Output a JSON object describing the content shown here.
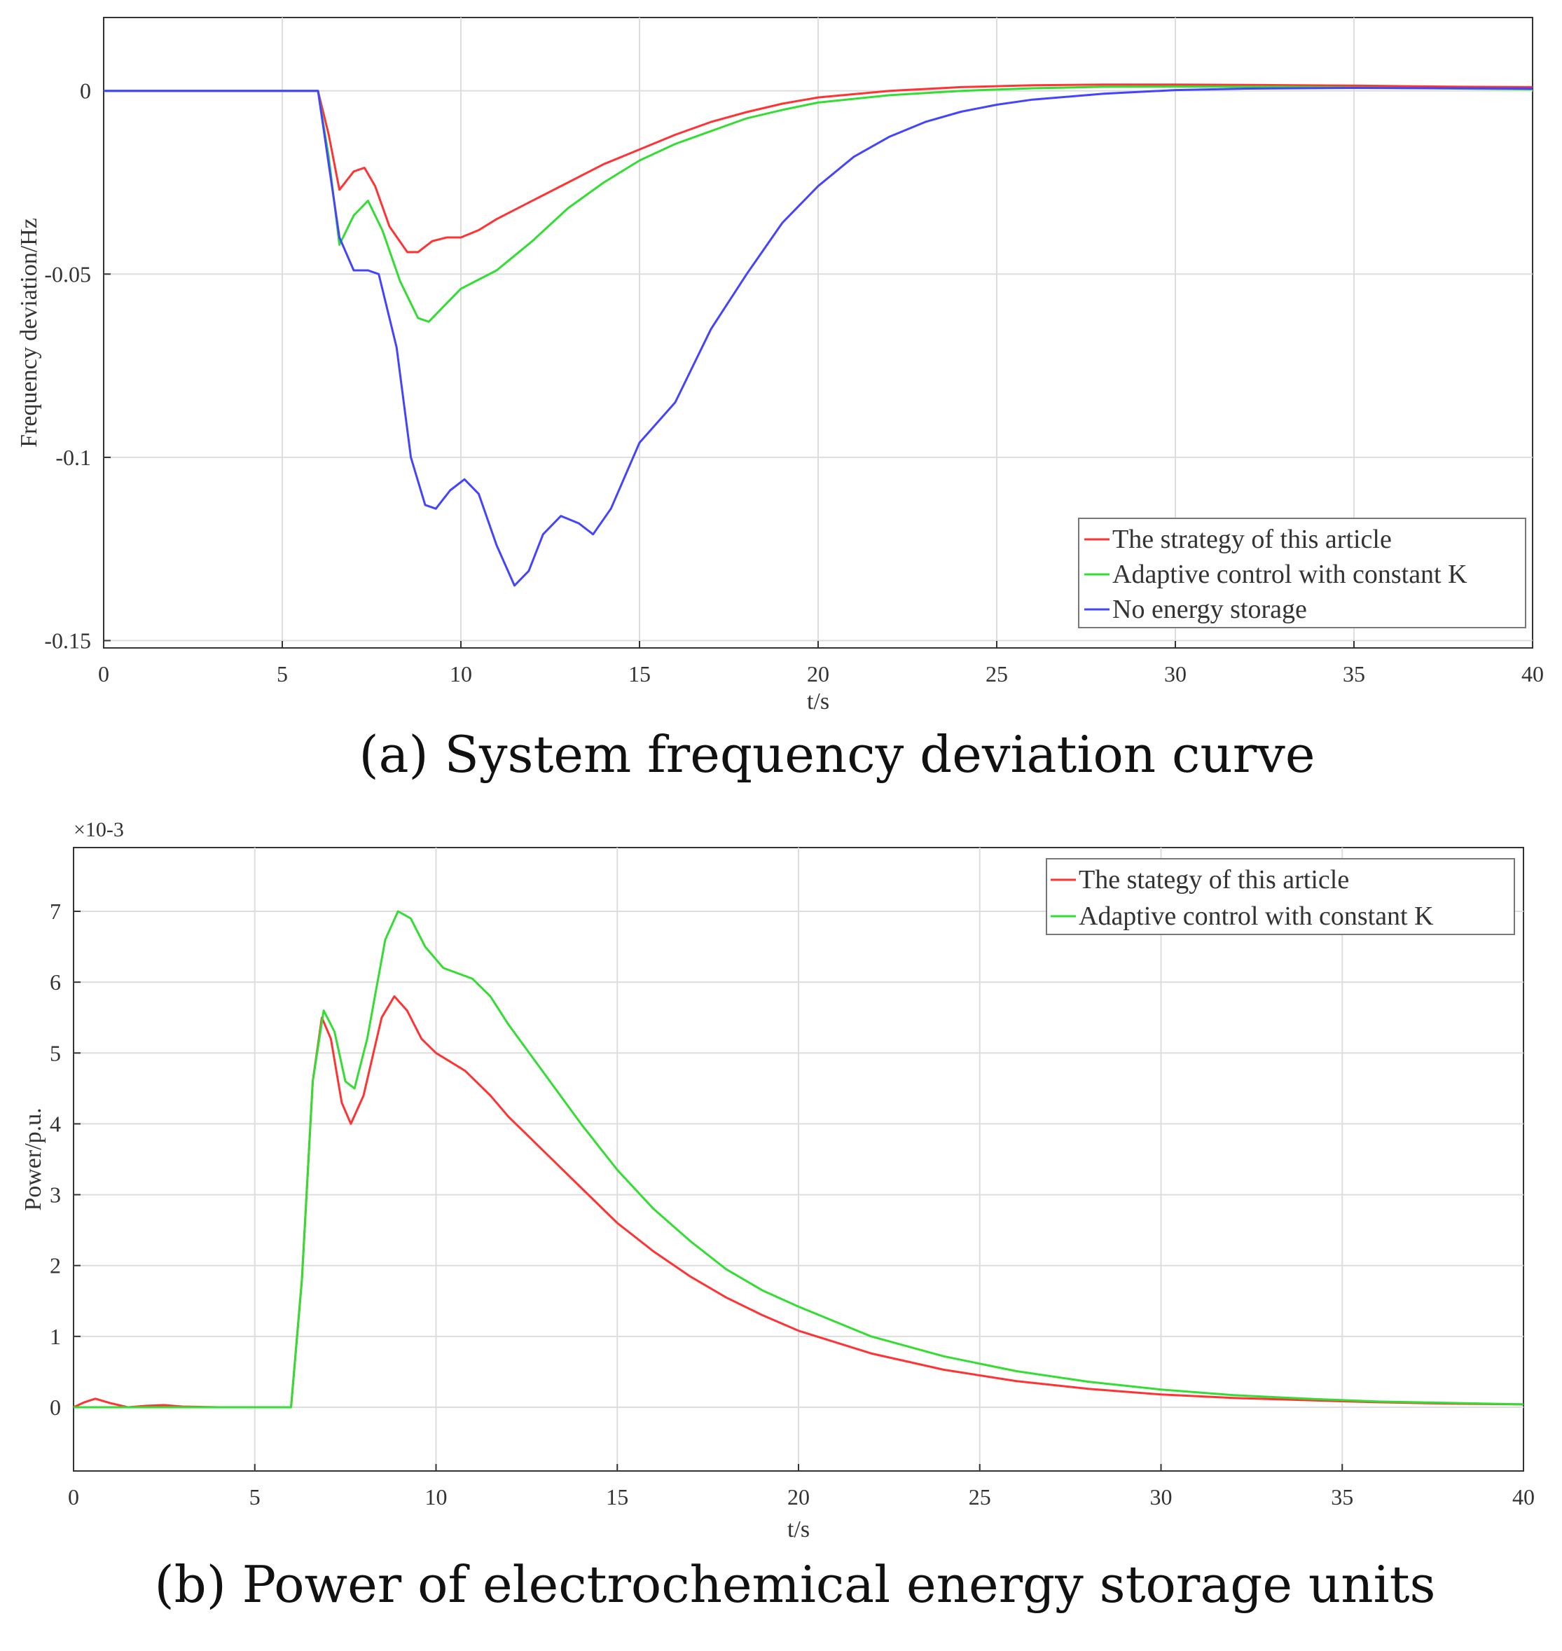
{
  "chart_data": [
    {
      "type": "line",
      "caption": "(a) System frequency deviation curve",
      "xlabel": "t/s",
      "ylabel": "Frequency deviation/Hz",
      "xlim": [
        0,
        40
      ],
      "ylim": [
        -0.152,
        0.02
      ],
      "xticks": [
        0,
        5,
        10,
        15,
        20,
        25,
        30,
        35,
        40
      ],
      "xtick_labels": [
        "0",
        "5",
        "10",
        "15",
        "20",
        "25",
        "30",
        "35",
        "40"
      ],
      "yticks": [
        0,
        -0.05,
        -0.1,
        -0.15
      ],
      "ytick_labels": [
        "0",
        "-0.05",
        "-0.1",
        "-0.15"
      ],
      "grid": true,
      "legend_position": "bottom-right",
      "series": [
        {
          "name": "The strategy of this article",
          "color": "#ff3333",
          "points": [
            [
              0,
              0
            ],
            [
              6,
              0
            ],
            [
              6.3,
              -0.012
            ],
            [
              6.6,
              -0.027
            ],
            [
              7,
              -0.022
            ],
            [
              7.3,
              -0.021
            ],
            [
              7.6,
              -0.026
            ],
            [
              8,
              -0.037
            ],
            [
              8.5,
              -0.044
            ],
            [
              8.8,
              -0.044
            ],
            [
              9.2,
              -0.041
            ],
            [
              9.6,
              -0.04
            ],
            [
              10,
              -0.04
            ],
            [
              10.5,
              -0.038
            ],
            [
              11,
              -0.035
            ],
            [
              12,
              -0.03
            ],
            [
              13,
              -0.025
            ],
            [
              14,
              -0.02
            ],
            [
              15,
              -0.016
            ],
            [
              16,
              -0.012
            ],
            [
              17,
              -0.0085
            ],
            [
              18,
              -0.0058
            ],
            [
              19,
              -0.0035
            ],
            [
              20,
              -0.0018
            ],
            [
              22,
              0
            ],
            [
              24,
              0.001
            ],
            [
              26,
              0.0015
            ],
            [
              28,
              0.0017
            ],
            [
              30,
              0.0017
            ],
            [
              32,
              0.0016
            ],
            [
              35,
              0.0014
            ],
            [
              38,
              0.0011
            ],
            [
              40,
              0.001
            ]
          ]
        },
        {
          "name": "Adaptive control with constant K",
          "color": "#33dd33",
          "points": [
            [
              0,
              0
            ],
            [
              6,
              0
            ],
            [
              6.3,
              -0.018
            ],
            [
              6.6,
              -0.042
            ],
            [
              7,
              -0.034
            ],
            [
              7.4,
              -0.03
            ],
            [
              7.8,
              -0.038
            ],
            [
              8.3,
              -0.052
            ],
            [
              8.8,
              -0.062
            ],
            [
              9.1,
              -0.063
            ],
            [
              9.6,
              -0.058
            ],
            [
              10,
              -0.054
            ],
            [
              11,
              -0.049
            ],
            [
              12,
              -0.041
            ],
            [
              13,
              -0.032
            ],
            [
              14,
              -0.025
            ],
            [
              15,
              -0.019
            ],
            [
              16,
              -0.0145
            ],
            [
              17,
              -0.011
            ],
            [
              18,
              -0.0075
            ],
            [
              19,
              -0.0052
            ],
            [
              20,
              -0.0032
            ],
            [
              22,
              -0.0012
            ],
            [
              24,
              0
            ],
            [
              26,
              0.0007
            ],
            [
              28,
              0.0011
            ],
            [
              30,
              0.0012
            ],
            [
              33,
              0.0011
            ],
            [
              36,
              0.0008
            ],
            [
              40,
              0.0004
            ]
          ]
        },
        {
          "name": "No energy storage",
          "color": "#4444ff",
          "points": [
            [
              0,
              0
            ],
            [
              6,
              0
            ],
            [
              6.3,
              -0.02
            ],
            [
              6.6,
              -0.04
            ],
            [
              7,
              -0.049
            ],
            [
              7.4,
              -0.049
            ],
            [
              7.7,
              -0.05
            ],
            [
              8.2,
              -0.07
            ],
            [
              8.6,
              -0.1
            ],
            [
              9,
              -0.113
            ],
            [
              9.3,
              -0.114
            ],
            [
              9.7,
              -0.109
            ],
            [
              10.1,
              -0.106
            ],
            [
              10.5,
              -0.11
            ],
            [
              11,
              -0.124
            ],
            [
              11.5,
              -0.135
            ],
            [
              11.9,
              -0.131
            ],
            [
              12.3,
              -0.121
            ],
            [
              12.8,
              -0.116
            ],
            [
              13.3,
              -0.118
            ],
            [
              13.7,
              -0.121
            ],
            [
              14.2,
              -0.114
            ],
            [
              15,
              -0.096
            ],
            [
              16,
              -0.085
            ],
            [
              17,
              -0.065
            ],
            [
              18,
              -0.05
            ],
            [
              19,
              -0.036
            ],
            [
              20,
              -0.026
            ],
            [
              21,
              -0.018
            ],
            [
              22,
              -0.0125
            ],
            [
              23,
              -0.0085
            ],
            [
              24,
              -0.0057
            ],
            [
              25,
              -0.0038
            ],
            [
              26,
              -0.0024
            ],
            [
              28,
              -0.0008
            ],
            [
              30,
              0.0002
            ],
            [
              32,
              0.0006
            ],
            [
              35,
              0.0008
            ],
            [
              38,
              0.0007
            ],
            [
              40,
              0.0006
            ]
          ]
        }
      ]
    },
    {
      "type": "line",
      "caption": "(b) Power of electrochemical energy storage units",
      "xlabel": "t/s",
      "ylabel": "Power/p.u.",
      "y_multiplier": "×10-3",
      "xlim": [
        0,
        40
      ],
      "ylim": [
        -0.9,
        7.9
      ],
      "xticks": [
        0,
        5,
        10,
        15,
        20,
        25,
        30,
        35,
        40
      ],
      "xtick_labels": [
        "0",
        "5",
        "10",
        "15",
        "20",
        "25",
        "30",
        "35",
        "40"
      ],
      "yticks": [
        0,
        1,
        2,
        3,
        4,
        5,
        6,
        7
      ],
      "ytick_labels": [
        "0",
        "1",
        "2",
        "3",
        "4",
        "5",
        "6",
        "7"
      ],
      "grid": true,
      "legend_position": "top-right",
      "series": [
        {
          "name": "The stategy of this article",
          "color": "#ff3333",
          "points": [
            [
              0,
              0
            ],
            [
              0.3,
              0.07
            ],
            [
              0.6,
              0.12
            ],
            [
              1,
              0.06
            ],
            [
              1.5,
              0
            ],
            [
              2,
              0.02
            ],
            [
              2.5,
              0.03
            ],
            [
              3,
              0.01
            ],
            [
              4,
              0
            ],
            [
              6,
              0
            ],
            [
              6.3,
              1.8
            ],
            [
              6.6,
              4.6
            ],
            [
              6.85,
              5.5
            ],
            [
              7.1,
              5.2
            ],
            [
              7.4,
              4.3
            ],
            [
              7.65,
              4.0
            ],
            [
              8,
              4.4
            ],
            [
              8.5,
              5.5
            ],
            [
              8.85,
              5.8
            ],
            [
              9.2,
              5.6
            ],
            [
              9.6,
              5.2
            ],
            [
              10,
              5.0
            ],
            [
              10.8,
              4.75
            ],
            [
              11.5,
              4.4
            ],
            [
              12,
              4.1
            ],
            [
              13,
              3.6
            ],
            [
              14,
              3.1
            ],
            [
              15,
              2.6
            ],
            [
              16,
              2.2
            ],
            [
              17,
              1.85
            ],
            [
              18,
              1.55
            ],
            [
              19,
              1.3
            ],
            [
              20,
              1.08
            ],
            [
              22,
              0.76
            ],
            [
              24,
              0.53
            ],
            [
              26,
              0.37
            ],
            [
              28,
              0.26
            ],
            [
              30,
              0.18
            ],
            [
              32,
              0.13
            ],
            [
              34,
              0.1
            ],
            [
              36,
              0.07
            ],
            [
              38,
              0.05
            ],
            [
              40,
              0.04
            ]
          ]
        },
        {
          "name": "Adaptive control with constant K",
          "color": "#33dd33",
          "points": [
            [
              0,
              0
            ],
            [
              1,
              0
            ],
            [
              2,
              0
            ],
            [
              4,
              0
            ],
            [
              6,
              0
            ],
            [
              6.3,
              1.8
            ],
            [
              6.6,
              4.6
            ],
            [
              6.9,
              5.6
            ],
            [
              7.2,
              5.3
            ],
            [
              7.5,
              4.6
            ],
            [
              7.75,
              4.5
            ],
            [
              8.1,
              5.2
            ],
            [
              8.6,
              6.6
            ],
            [
              8.95,
              7.0
            ],
            [
              9.3,
              6.9
            ],
            [
              9.7,
              6.5
            ],
            [
              10.2,
              6.2
            ],
            [
              11,
              6.05
            ],
            [
              11.5,
              5.8
            ],
            [
              12,
              5.4
            ],
            [
              13,
              4.7
            ],
            [
              14,
              4.0
            ],
            [
              15,
              3.35
            ],
            [
              16,
              2.8
            ],
            [
              17,
              2.35
            ],
            [
              18,
              1.95
            ],
            [
              19,
              1.65
            ],
            [
              20,
              1.42
            ],
            [
              22,
              1.0
            ],
            [
              24,
              0.72
            ],
            [
              26,
              0.51
            ],
            [
              28,
              0.36
            ],
            [
              30,
              0.25
            ],
            [
              32,
              0.17
            ],
            [
              34,
              0.12
            ],
            [
              36,
              0.08
            ],
            [
              38,
              0.06
            ],
            [
              40,
              0.04
            ]
          ]
        }
      ]
    }
  ]
}
